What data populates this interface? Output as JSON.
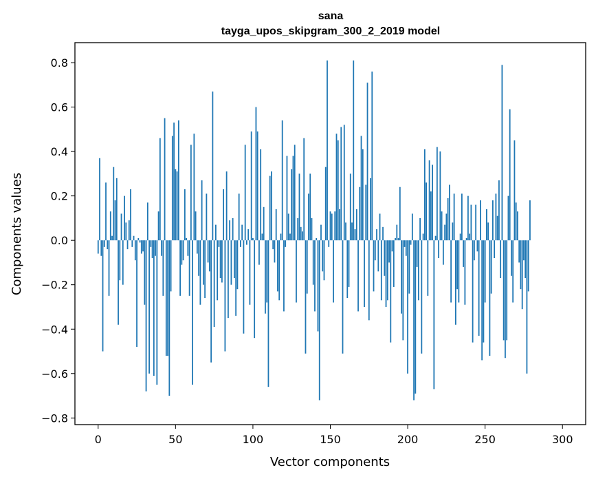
{
  "chart_data": {
    "type": "bar",
    "title": "sana",
    "subtitle": "tayga_upos_skipgram_300_2_2019 model",
    "xlabel": "Vector components",
    "ylabel": "Components values",
    "xlim": [
      -15,
      315
    ],
    "ylim": [
      -0.83,
      0.89
    ],
    "xticks": [
      0,
      50,
      100,
      150,
      200,
      250,
      300
    ],
    "xtick_labels": [
      "0",
      "50",
      "100",
      "150",
      "200",
      "250",
      "300"
    ],
    "yticks": [
      -0.8,
      -0.6,
      -0.4,
      -0.2,
      0.0,
      0.2,
      0.4,
      0.6,
      0.8
    ],
    "ytick_labels": [
      "−0.8",
      "−0.6",
      "−0.4",
      "−0.2",
      "0.0",
      "0.2",
      "0.4",
      "0.6",
      "0.8"
    ],
    "bar_color": "#1f77b4",
    "grid": false,
    "values": [
      -0.06,
      0.37,
      -0.07,
      -0.5,
      -0.03,
      0.26,
      -0.04,
      -0.25,
      0.13,
      0.02,
      0.33,
      0.18,
      0.28,
      -0.38,
      -0.18,
      0.12,
      -0.2,
      0.2,
      0.08,
      -0.04,
      0.09,
      0.23,
      -0.03,
      0.02,
      -0.09,
      -0.48,
      0.01,
      -0.01,
      -0.06,
      -0.05,
      -0.29,
      -0.68,
      0.17,
      -0.6,
      -0.03,
      -0.08,
      -0.61,
      -0.07,
      -0.65,
      0.13,
      0.46,
      -0.07,
      -0.25,
      0.55,
      -0.52,
      -0.52,
      -0.7,
      -0.23,
      0.47,
      0.53,
      0.32,
      0.31,
      0.54,
      -0.25,
      -0.11,
      -0.09,
      0.23,
      0.01,
      -0.07,
      -0.25,
      0.43,
      -0.65,
      0.48,
      0.13,
      -0.06,
      -0.16,
      -0.29,
      0.27,
      -0.2,
      -0.26,
      0.21,
      -0.1,
      -0.14,
      -0.55,
      0.67,
      -0.39,
      0.07,
      -0.27,
      -0.03,
      -0.17,
      -0.19,
      0.23,
      -0.5,
      0.31,
      -0.35,
      0.09,
      -0.2,
      0.1,
      -0.17,
      -0.34,
      -0.22,
      0.21,
      -0.03,
      0.07,
      -0.42,
      0.43,
      -0.02,
      0.05,
      -0.29,
      0.49,
      0.01,
      -0.44,
      0.6,
      0.49,
      -0.11,
      0.41,
      0.03,
      0.15,
      -0.33,
      -0.28,
      -0.66,
      0.29,
      0.31,
      -0.04,
      -0.1,
      0.14,
      -0.23,
      -0.27,
      0.03,
      0.54,
      -0.32,
      -0.03,
      0.38,
      0.12,
      0.03,
      0.32,
      0.38,
      0.43,
      -0.28,
      0.1,
      0.3,
      0.06,
      0.04,
      0.46,
      -0.51,
      -0.24,
      0.21,
      0.3,
      0.1,
      -0.2,
      -0.32,
      0.01,
      -0.41,
      -0.72,
      0.07,
      -0.14,
      -0.18,
      0.33,
      0.81,
      -0.03,
      0.13,
      0.12,
      -0.28,
      0.13,
      0.48,
      0.45,
      0.14,
      0.51,
      -0.51,
      0.52,
      0.08,
      -0.26,
      -0.21,
      0.3,
      0.08,
      0.81,
      0.05,
      0.14,
      -0.32,
      0.24,
      0.47,
      0.41,
      -0.3,
      0.25,
      0.71,
      -0.36,
      0.28,
      0.76,
      -0.23,
      -0.09,
      0.05,
      -0.14,
      0.12,
      -0.27,
      0.06,
      -0.16,
      -0.3,
      -0.27,
      -0.1,
      -0.46,
      -0.05,
      -0.21,
      0.01,
      0.07,
      0.01,
      0.24,
      -0.33,
      -0.45,
      -0.03,
      -0.07,
      -0.6,
      -0.24,
      -0.02,
      0.12,
      -0.72,
      -0.69,
      -0.12,
      -0.27,
      0.1,
      -0.51,
      0.03,
      0.41,
      0.26,
      -0.25,
      0.36,
      0.22,
      0.34,
      -0.67,
      0.02,
      0.42,
      -0.08,
      0.4,
      0.13,
      -0.11,
      0.07,
      0.12,
      0.19,
      0.25,
      -0.28,
      0.08,
      0.21,
      -0.38,
      -0.22,
      -0.28,
      0.03,
      0.21,
      -0.12,
      -0.29,
      0.01,
      0.2,
      0.03,
      0.16,
      -0.46,
      -0.09,
      0.16,
      -0.05,
      -0.43,
      0.18,
      -0.54,
      -0.46,
      -0.28,
      0.14,
      0.08,
      -0.52,
      -0.24,
      0.18,
      -0.08,
      0.21,
      0.11,
      0.27,
      -0.17,
      0.79,
      -0.45,
      -0.53,
      -0.45,
      0.2,
      0.59,
      -0.16,
      -0.28,
      0.45,
      0.17,
      0.13,
      -0.1,
      -0.22,
      -0.31,
      -0.09,
      -0.17,
      -0.6,
      -0.23,
      0.18
    ]
  }
}
